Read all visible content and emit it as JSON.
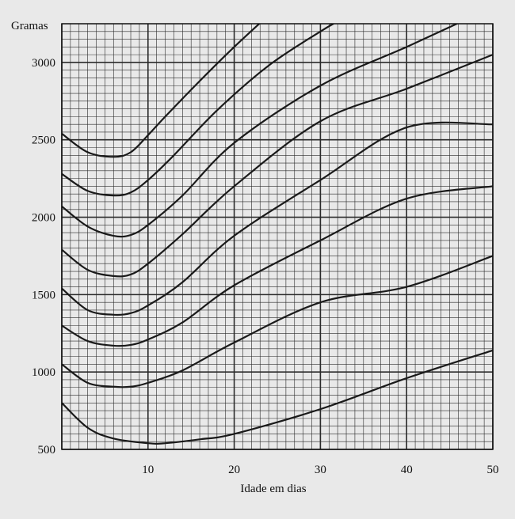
{
  "chart_data": {
    "type": "line",
    "title": "",
    "ylabel": "Gramas",
    "xlabel": "Idade em dias",
    "xlim": [
      0,
      50
    ],
    "ylim": [
      500,
      3250
    ],
    "x_ticks": [
      10,
      20,
      30,
      40,
      50
    ],
    "y_ticks": [
      500,
      1000,
      1500,
      2000,
      2500,
      3000
    ],
    "grid": true,
    "legend": "none",
    "line_color": "#1a1a1a",
    "grid_color": "#2a2a2a",
    "series": [
      {
        "x": [
          0,
          3,
          6,
          8,
          10,
          12,
          16,
          20,
          23.5
        ],
        "values": [
          2540,
          2420,
          2390,
          2420,
          2530,
          2650,
          2880,
          3100,
          3280
        ]
      },
      {
        "x": [
          0,
          3,
          6,
          8,
          10,
          13,
          18,
          24,
          30,
          32.5
        ],
        "values": [
          2280,
          2170,
          2140,
          2160,
          2240,
          2400,
          2690,
          2980,
          3200,
          3280
        ]
      },
      {
        "x": [
          0,
          3,
          6,
          8,
          10,
          14,
          20,
          30,
          40,
          47
        ],
        "values": [
          2070,
          1940,
          1880,
          1885,
          1950,
          2140,
          2480,
          2850,
          3100,
          3280
        ]
      },
      {
        "x": [
          0,
          3,
          6,
          8,
          10,
          14,
          20,
          30,
          40,
          50
        ],
        "values": [
          1790,
          1660,
          1620,
          1630,
          1700,
          1890,
          2200,
          2620,
          2830,
          3050
        ]
      },
      {
        "x": [
          0,
          3,
          6,
          8,
          10,
          14,
          20,
          30,
          40,
          50
        ],
        "values": [
          1540,
          1400,
          1370,
          1380,
          1430,
          1580,
          1880,
          2240,
          2580,
          2600
        ]
      },
      {
        "x": [
          0,
          3,
          6,
          8,
          10,
          14,
          20,
          30,
          40,
          50
        ],
        "values": [
          1300,
          1200,
          1170,
          1175,
          1210,
          1320,
          1560,
          1850,
          2120,
          2200
        ]
      },
      {
        "x": [
          0,
          3,
          6,
          8,
          10,
          14,
          20,
          30,
          40,
          50
        ],
        "values": [
          1050,
          930,
          905,
          905,
          930,
          1010,
          1190,
          1450,
          1550,
          1750
        ]
      },
      {
        "x": [
          0,
          3,
          6,
          10,
          12,
          16,
          20,
          30,
          40,
          50
        ],
        "values": [
          800,
          640,
          570,
          540,
          540,
          565,
          600,
          760,
          960,
          1140
        ]
      }
    ]
  }
}
